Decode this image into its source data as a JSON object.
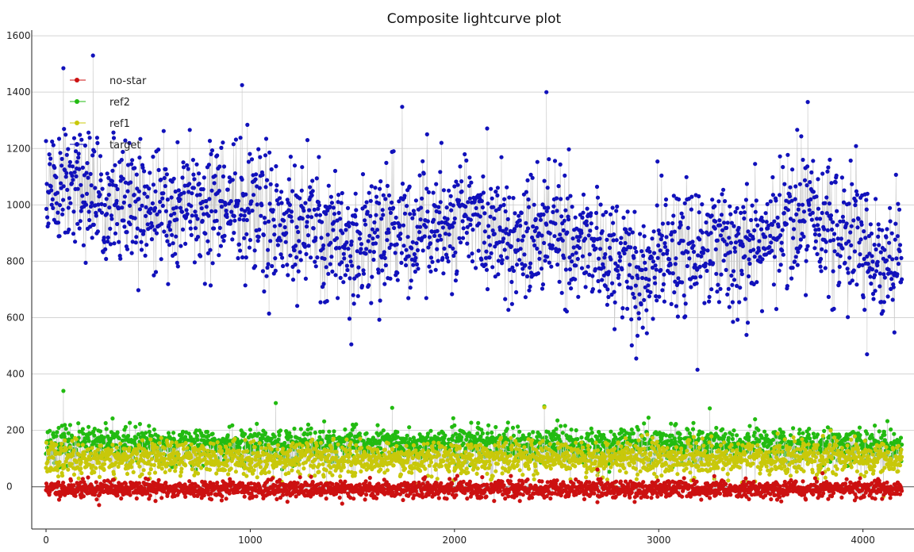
{
  "chart_data": {
    "type": "scatter",
    "title": "Composite lightcurve plot",
    "xlabel": "",
    "ylabel": "",
    "xlim": [
      -70,
      4250
    ],
    "ylim": [
      -150,
      1620
    ],
    "x_ticks": [
      0,
      1000,
      2000,
      3000,
      4000
    ],
    "y_ticks": [
      0,
      200,
      400,
      600,
      800,
      1000,
      1200,
      1400,
      1600
    ],
    "grid": "horizontal",
    "legend_position": "top-left",
    "zero_line": true,
    "n_points": 4200,
    "series": [
      {
        "name": "no-star",
        "color": "#cc1111",
        "marker": "circle",
        "connector_color": "#c8c8c8",
        "trend": {
          "x": [
            0,
            1000,
            2000,
            3000,
            4000,
            4190
          ],
          "y": [
            -8,
            -8,
            -8,
            -8,
            -8,
            -8
          ]
        },
        "scatter_sd": 15,
        "outliers": [
          {
            "x": 260,
            "y": -65
          },
          {
            "x": 1450,
            "y": -60
          },
          {
            "x": 2700,
            "y": -55
          },
          {
            "x": 3600,
            "y": -52
          }
        ]
      },
      {
        "name": "ref2",
        "color": "#22bb11",
        "marker": "circle",
        "connector_color": "#c8c8c8",
        "trend": {
          "x": [
            0,
            1000,
            2000,
            3000,
            4000,
            4190
          ],
          "y": [
            150,
            150,
            148,
            148,
            150,
            148
          ]
        },
        "scatter_sd": 30,
        "outliers": [
          {
            "x": 85,
            "y": 340
          },
          {
            "x": 1125,
            "y": 297
          },
          {
            "x": 1695,
            "y": 280
          },
          {
            "x": 2440,
            "y": 285
          },
          {
            "x": 3250,
            "y": 278
          }
        ]
      },
      {
        "name": "ref1",
        "color": "#c8c80a",
        "marker": "circle",
        "connector_color": "#c8c8c8",
        "trend": {
          "x": [
            0,
            1000,
            2000,
            3000,
            4000,
            4190
          ],
          "y": [
            100,
            102,
            100,
            100,
            98,
            96
          ]
        },
        "scatter_sd": 30,
        "outliers": [
          {
            "x": 2440,
            "y": 282
          },
          {
            "x": 4100,
            "y": -35
          }
        ]
      },
      {
        "name": "target",
        "color": "#1111bb",
        "marker": "circle",
        "connector_color": "#c8c8c8",
        "trend": {
          "x": [
            0,
            200,
            500,
            800,
            1000,
            1300,
            1500,
            1800,
            2000,
            2300,
            2500,
            2700,
            2900,
            3100,
            3300,
            3500,
            3700,
            3900,
            4100,
            4190
          ],
          "y": [
            1070,
            1030,
            980,
            1000,
            980,
            920,
            860,
            920,
            960,
            880,
            910,
            840,
            760,
            840,
            830,
            880,
            960,
            920,
            780,
            810
          ]
        },
        "scatter_sd": 115,
        "outliers": [
          {
            "x": 230,
            "y": 1530
          },
          {
            "x": 85,
            "y": 1485
          },
          {
            "x": 960,
            "y": 1425
          },
          {
            "x": 2450,
            "y": 1400
          },
          {
            "x": 3730,
            "y": 1365
          },
          {
            "x": 3190,
            "y": 415
          },
          {
            "x": 1495,
            "y": 505
          },
          {
            "x": 4020,
            "y": 470
          },
          {
            "x": 2890,
            "y": 455
          }
        ]
      }
    ]
  }
}
